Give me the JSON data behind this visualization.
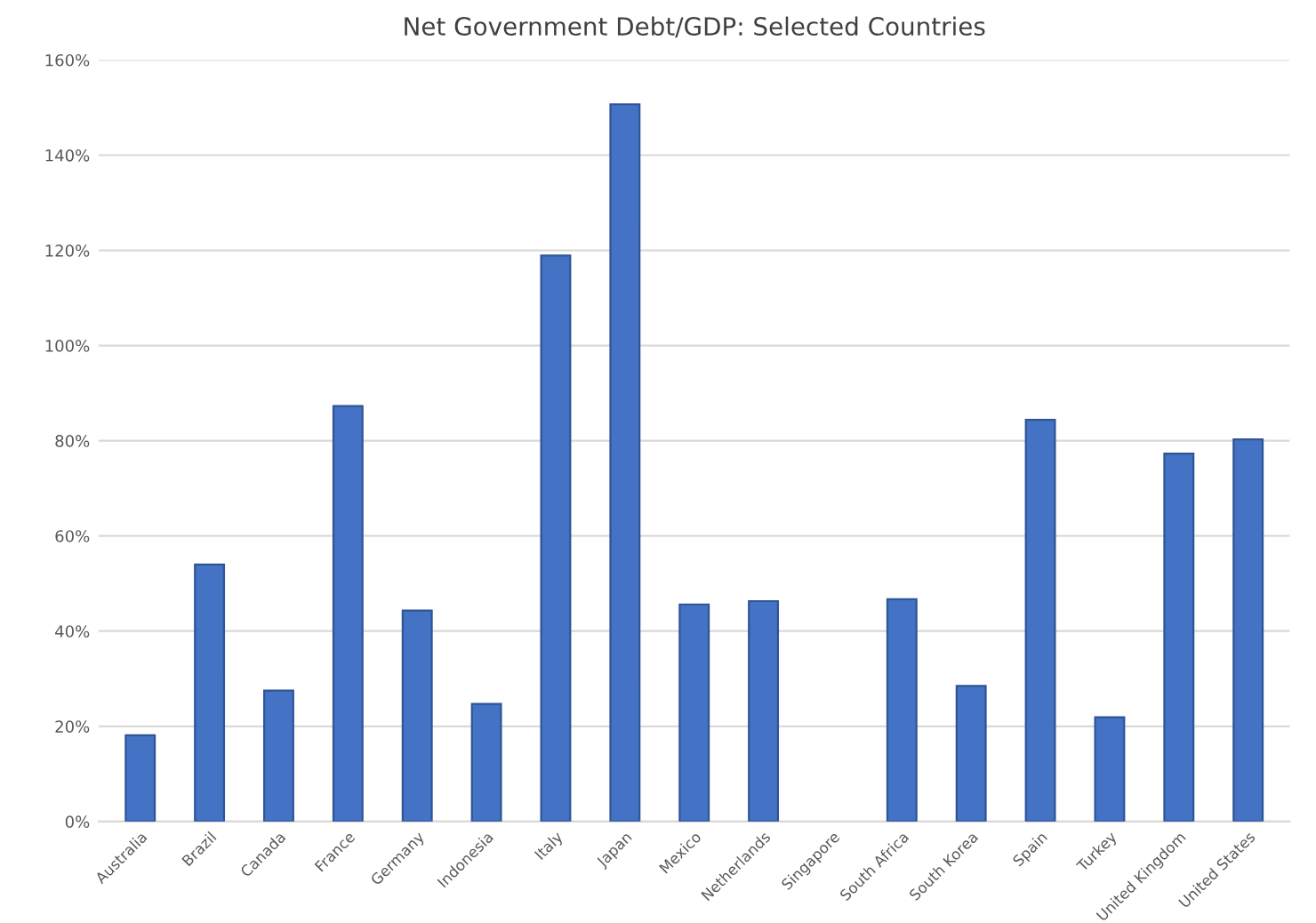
{
  "chart_data": {
    "type": "bar",
    "title": "Net Government Debt/GDP: Selected Countries",
    "categories": [
      "Australia",
      "Brazil",
      "Canada",
      "France",
      "Germany",
      "Indonesia",
      "Italy",
      "Japan",
      "Mexico",
      "Netherlands",
      "Singapore",
      "South Africa",
      "South Korea",
      "Spain",
      "Turkey",
      "United Kingdom",
      "United States"
    ],
    "values": [
      18.1,
      54.0,
      27.5,
      87.3,
      44.3,
      24.7,
      118.9,
      150.7,
      45.6,
      46.3,
      null,
      46.7,
      28.5,
      84.4,
      21.9,
      77.3,
      80.3
    ],
    "color": "#4472c4",
    "ylim": [
      0,
      160
    ],
    "yticks": [
      {
        "value": 0,
        "label": "0%"
      },
      {
        "value": 20,
        "label": "20%"
      },
      {
        "value": 40,
        "label": "40%"
      },
      {
        "value": 60,
        "label": "60%"
      },
      {
        "value": 80,
        "label": "80%"
      },
      {
        "value": 100,
        "label": "100%"
      },
      {
        "value": 120,
        "label": "120%"
      },
      {
        "value": 140,
        "label": "140%"
      },
      {
        "value": 160,
        "label": "160%"
      }
    ],
    "grid": "y"
  }
}
